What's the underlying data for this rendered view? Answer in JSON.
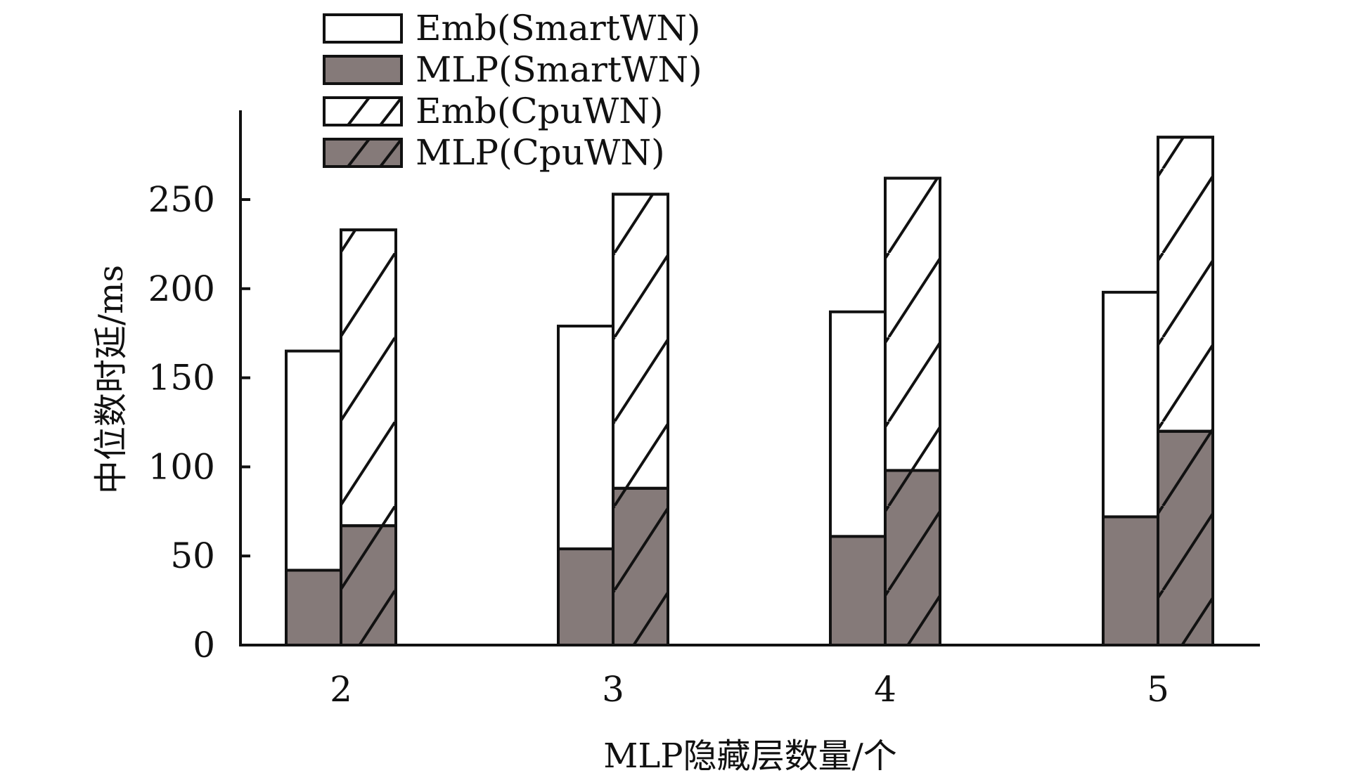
{
  "chart_data": {
    "type": "bar",
    "stacked": true,
    "title": "",
    "xlabel": "MLP隐藏层数量/个",
    "ylabel": "中位数时延/ms",
    "categories": [
      "2",
      "3",
      "4",
      "5"
    ],
    "ylim": [
      0,
      290
    ],
    "yticks": [
      "0",
      "50",
      "100",
      "150",
      "200",
      "250"
    ],
    "grid": false,
    "legend_position": "top-left",
    "colors": {
      "dark": "#857a79",
      "light": "#ffffff",
      "stroke": "#111111"
    },
    "series": [
      {
        "name": "Emb(SmartWN)",
        "stack": "SmartWN",
        "style": "light",
        "values": [
          123,
          125,
          126,
          126
        ]
      },
      {
        "name": "MLP(SmartWN)",
        "stack": "SmartWN",
        "style": "dark",
        "values": [
          42,
          54,
          61,
          72
        ]
      },
      {
        "name": "Emb(CpuWN)",
        "stack": "CpuWN",
        "style": "light-hatch",
        "values": [
          166,
          165,
          164,
          165
        ]
      },
      {
        "name": "MLP(CpuWN)",
        "stack": "CpuWN",
        "style": "dark-hatch",
        "values": [
          67,
          88,
          98,
          120
        ]
      }
    ]
  }
}
